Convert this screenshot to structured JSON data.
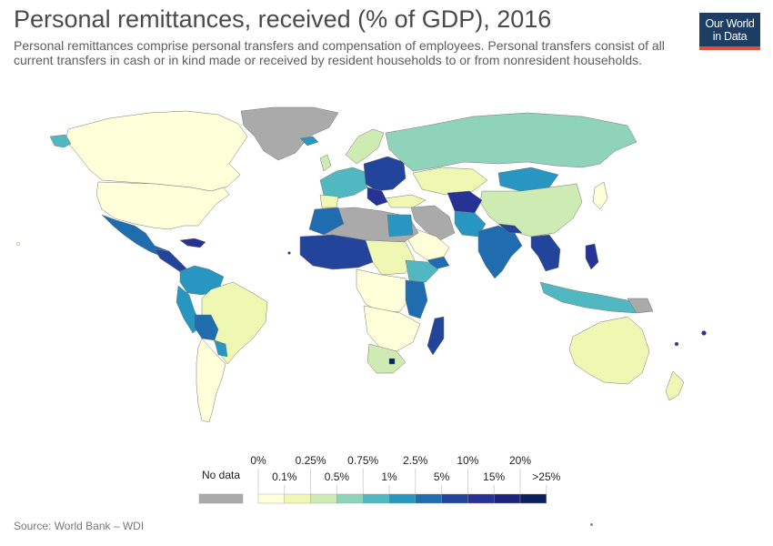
{
  "header": {
    "title": "Personal remittances, received (% of GDP), 2016",
    "subtitle": "Personal remittances comprise personal transfers and compensation of employees. Personal transfers consist of all current transfers in cash or in kind made or received by resident households to or from nonresident households."
  },
  "logo": {
    "line1": "Our World",
    "line2": "in Data",
    "bg": "#1d3d63",
    "accent": "#e0503a"
  },
  "legend": {
    "no_data_label": "No data",
    "no_data_color": "#aaaaaa",
    "top_labels": [
      "0%",
      "0.25%",
      "0.75%",
      "2.5%",
      "10%",
      "20%"
    ],
    "bottom_labels": [
      "0.1%",
      "0.5%",
      "1%",
      "5%",
      "15%",
      ">25%"
    ],
    "bins": [
      {
        "range": "0-0.1%",
        "color": "#ffffd9"
      },
      {
        "range": "0.1-0.25%",
        "color": "#eff8b3"
      },
      {
        "range": "0.25-0.5%",
        "color": "#cfebb4"
      },
      {
        "range": "0.5-0.75%",
        "color": "#8fd3bb"
      },
      {
        "range": "0.75-1%",
        "color": "#51b8c2"
      },
      {
        "range": "1-2.5%",
        "color": "#2796c0"
      },
      {
        "range": "2.5-5%",
        "color": "#1f6caf"
      },
      {
        "range": "5-10%",
        "color": "#22449b"
      },
      {
        "range": "10-15%",
        "color": "#263294"
      },
      {
        "range": "15-20%",
        "color": "#1b237a"
      },
      {
        "range": "20-25%",
        "color": "#0a1f5c"
      }
    ]
  },
  "source": "Source: World Bank – WDI"
}
